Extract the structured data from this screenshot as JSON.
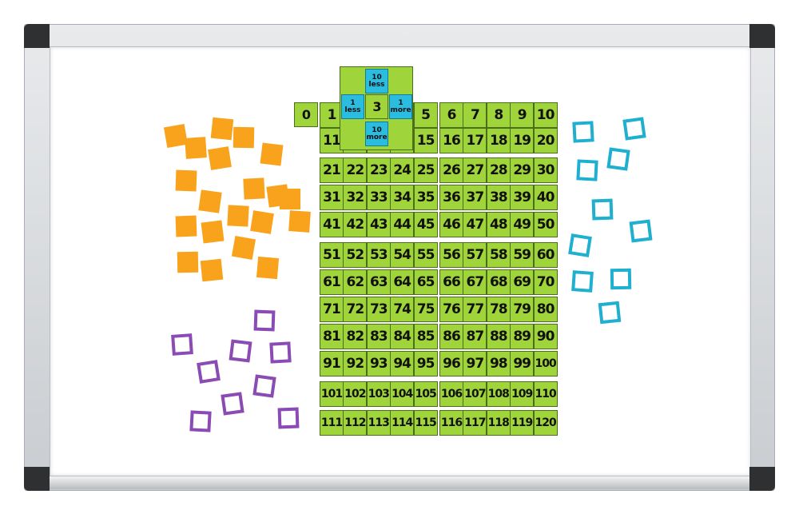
{
  "zero": "0",
  "grid": [
    [
      "1",
      null,
      null,
      null,
      "5",
      "6",
      "7",
      "8",
      "9",
      "10"
    ],
    [
      "11",
      null,
      null,
      null,
      "15",
      "16",
      "17",
      "18",
      "19",
      "20"
    ],
    [
      "21",
      "22",
      "23",
      "24",
      "25",
      "26",
      "27",
      "28",
      "29",
      "30"
    ],
    [
      "31",
      "32",
      "33",
      "34",
      "35",
      "36",
      "37",
      "38",
      "39",
      "40"
    ],
    [
      "41",
      "42",
      "43",
      "44",
      "45",
      "46",
      "47",
      "48",
      "49",
      "50"
    ],
    [
      "51",
      "52",
      "53",
      "54",
      "55",
      "56",
      "57",
      "58",
      "59",
      "60"
    ],
    [
      "61",
      "62",
      "63",
      "64",
      "65",
      "66",
      "67",
      "68",
      "69",
      "70"
    ],
    [
      "71",
      "72",
      "73",
      "74",
      "75",
      "76",
      "77",
      "78",
      "79",
      "80"
    ],
    [
      "81",
      "82",
      "83",
      "84",
      "85",
      "86",
      "87",
      "88",
      "89",
      "90"
    ],
    [
      "91",
      "92",
      "93",
      "94",
      "95",
      "96",
      "97",
      "98",
      "99",
      "100"
    ],
    [
      "101",
      "102",
      "103",
      "104",
      "105",
      "106",
      "107",
      "108",
      "109",
      "110"
    ],
    [
      "111",
      "112",
      "113",
      "114",
      "115",
      "116",
      "117",
      "118",
      "119",
      "120"
    ]
  ],
  "overlay": {
    "top": "10 less",
    "left": "1 less",
    "center": "3",
    "right": "1 more",
    "bottom": "10 more"
  }
}
